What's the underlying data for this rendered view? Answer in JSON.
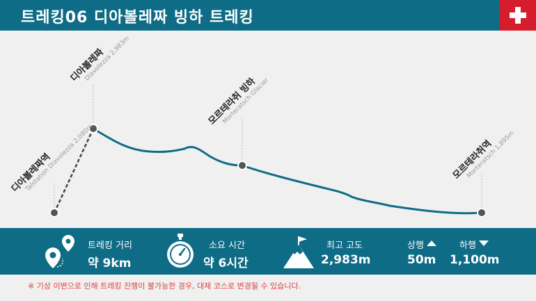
{
  "header": {
    "title": "트레킹06  디아볼레짜 빙하 트레킹"
  },
  "colors": {
    "primary": "#0e6c86",
    "flag_red": "#d51d2e",
    "notice": "#e0413f",
    "route": "#0e6c86"
  },
  "stations": [
    {
      "name_ko": "디아볼레짜역",
      "name_en": "Talstation Diavolezza 2,080m"
    },
    {
      "name_ko": "디아볼레짜",
      "name_en": "Diavolezza 2,983m"
    },
    {
      "name_ko": "모르테라취 빙하",
      "name_en": "Morteratsch Glacier"
    },
    {
      "name_ko": "모르테라취역",
      "name_en": "Morteratsch 1,895m"
    }
  ],
  "stats": {
    "distance": {
      "label": "트레킹 거리",
      "value": "약 9km",
      "icon": "map-pin-icon"
    },
    "time": {
      "label": "소요 시간",
      "value": "약 6시간",
      "icon": "stopwatch-icon"
    },
    "altitude": {
      "label": "최고 고도",
      "value": "2,983m",
      "icon": "mountain-flag-icon"
    },
    "ascent": {
      "label": "상행",
      "value": "50m",
      "icon": "ascent-arrow-icon"
    },
    "descent": {
      "label": "하행",
      "value": "1,100m",
      "icon": "descent-arrow-icon"
    }
  },
  "notice": "※ 기상 이변으로 인해 트레킹 진행이 불가능한 경우, 대체 코스로 변경될 수 있습니다."
}
